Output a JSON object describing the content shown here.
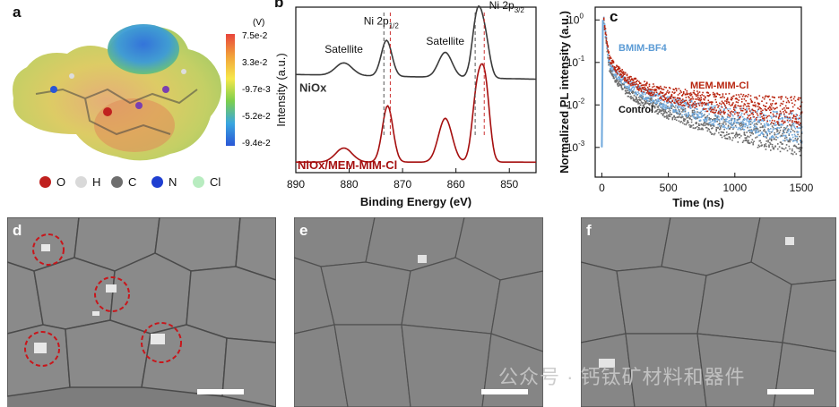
{
  "panels": {
    "a": {
      "letter": "a",
      "colorbar": {
        "unit": "(V)",
        "ticks": [
          "7.5e-2",
          "3.3e-2",
          "-9.7e-3",
          "-5.2e-2",
          "-9.4e-2"
        ],
        "colors": [
          "#e8453c",
          "#f2a33a",
          "#f6e84a",
          "#7ccf4d",
          "#3aa6e0",
          "#2a56d6"
        ]
      },
      "legend": [
        {
          "label": "O",
          "color": "#c0211f"
        },
        {
          "label": "H",
          "color": "#d9d9d9"
        },
        {
          "label": "C",
          "color": "#6e6e6e"
        },
        {
          "label": "N",
          "color": "#1f3fd1"
        },
        {
          "label": "Cl",
          "color": "#b8ecc0"
        }
      ]
    },
    "b": {
      "letter": "b",
      "traces": [
        "NiOx",
        "NiOx/MEM-MIM-Cl"
      ],
      "peak_labels": {
        "sat1": "Satellite",
        "ni2p12": "Ni 2p",
        "ni2p12_sub": "1/2",
        "sat2": "Satellite",
        "ni2p32": "Ni 2p",
        "ni2p32_sub": "3/2"
      }
    },
    "c": {
      "letter": "c",
      "series_labels": [
        "BMIM-BF4",
        "MEM-MIM-Cl",
        "Control"
      ]
    },
    "d": {
      "letter": "d"
    },
    "e": {
      "letter": "e"
    },
    "f": {
      "letter": "f"
    }
  },
  "chart_data": [
    {
      "type": "line",
      "xlabel": "Binding Energy (eV)",
      "ylabel": "Intensity (a.u.)",
      "xlim": [
        890,
        845
      ],
      "xticks": [
        890,
        880,
        870,
        860,
        850
      ],
      "series": [
        {
          "name": "NiOx",
          "color": "#3a3a3a",
          "x": [
            890,
            885,
            882,
            880,
            877,
            874,
            873,
            871,
            868,
            864,
            862,
            860,
            858,
            856,
            855,
            853,
            850,
            845
          ],
          "y": [
            0.6,
            0.62,
            0.68,
            0.66,
            0.68,
            0.82,
            0.83,
            0.68,
            0.65,
            0.7,
            0.76,
            0.7,
            0.8,
            1.0,
            0.95,
            0.68,
            0.63,
            0.6
          ]
        },
        {
          "name": "NiOx/MEM-MIM-Cl",
          "color": "#a50f0f",
          "x": [
            890,
            885,
            882,
            880,
            877,
            874,
            873,
            871,
            868,
            864,
            862,
            860,
            858,
            856,
            855,
            853,
            850,
            845
          ],
          "y": [
            0.05,
            0.06,
            0.15,
            0.14,
            0.15,
            0.4,
            0.42,
            0.15,
            0.1,
            0.22,
            0.33,
            0.2,
            0.4,
            0.73,
            0.7,
            0.14,
            0.07,
            0.05
          ]
        }
      ],
      "annotations": [
        "Satellite",
        "Ni 2p1/2",
        "Satellite",
        "Ni 2p3/2"
      ]
    },
    {
      "type": "scatter",
      "xlabel": "Time (ns)",
      "ylabel": "Normalized PL intensity (a.u.)",
      "xlim": [
        -50,
        1500
      ],
      "ylim": [
        0.0002,
        2
      ],
      "yscale": "log",
      "xticks": [
        0,
        500,
        1000,
        1500
      ],
      "yticks": [
        "10^-3",
        "10^-2",
        "10^-1",
        "10^0"
      ],
      "series": [
        {
          "name": "MEM-MIM-Cl",
          "color": "#b8250f",
          "x": [
            10,
            50,
            100,
            200,
            300,
            500,
            800,
            1000,
            1200,
            1500
          ],
          "y": [
            1.0,
            0.13,
            0.075,
            0.04,
            0.028,
            0.018,
            0.012,
            0.01,
            0.0085,
            0.007
          ]
        },
        {
          "name": "BMIM-BF4",
          "color": "#6fa8dc",
          "x": [
            10,
            50,
            100,
            200,
            300,
            500,
            800,
            1000,
            1200,
            1500
          ],
          "y": [
            1.0,
            0.1,
            0.055,
            0.03,
            0.02,
            0.011,
            0.0065,
            0.0048,
            0.0038,
            0.003
          ]
        },
        {
          "name": "Control",
          "color": "#6b6b6b",
          "x": [
            10,
            50,
            100,
            200,
            300,
            500,
            800,
            1000,
            1200,
            1500
          ],
          "y": [
            1.0,
            0.08,
            0.04,
            0.02,
            0.013,
            0.007,
            0.0038,
            0.0027,
            0.002,
            0.0015
          ]
        }
      ]
    }
  ],
  "watermark": "公众号 · 钙钛矿材料和器件"
}
